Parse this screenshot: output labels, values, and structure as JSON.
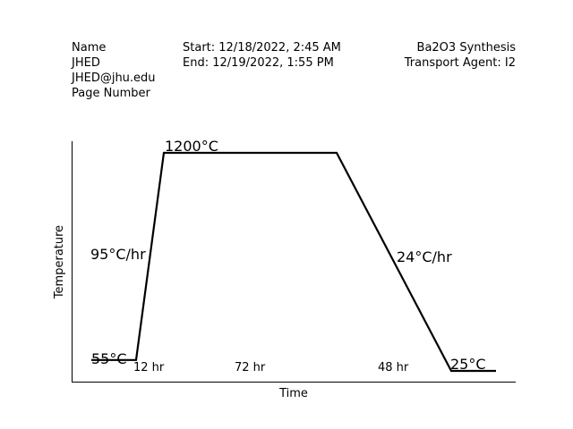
{
  "header": {
    "left": [
      "Name",
      "JHED",
      "JHED@jhu.edu",
      "Page Number"
    ],
    "middle": [
      "Start: 12/18/2022, 2:45 AM",
      "End: 12/19/2022, 1:55 PM"
    ],
    "right": [
      "Ba2O3 Synthesis",
      "Transport Agent: I2"
    ]
  },
  "chart_data": {
    "type": "line",
    "title": "",
    "xlabel": "Time",
    "ylabel": "Temperature",
    "grid": false,
    "legend": "none",
    "line_color": "#000000",
    "points": [
      {
        "x": 0,
        "y": 55
      },
      {
        "x": 12,
        "y": 55
      },
      {
        "x": 24,
        "y": 1200
      },
      {
        "x": 96,
        "y": 1200
      },
      {
        "x": 144,
        "y": 25
      },
      {
        "x": 163,
        "y": 25
      }
    ],
    "annotations": {
      "start_temp": "55°C",
      "peak_temp": "1200°C",
      "end_temp": "25°C",
      "ramp_up_rate": "95°C/hr",
      "ramp_down_rate": "24°C/hr",
      "hold_initial": "12 hr",
      "hold_peak": "72 hr",
      "cool_time": "48 hr"
    }
  }
}
